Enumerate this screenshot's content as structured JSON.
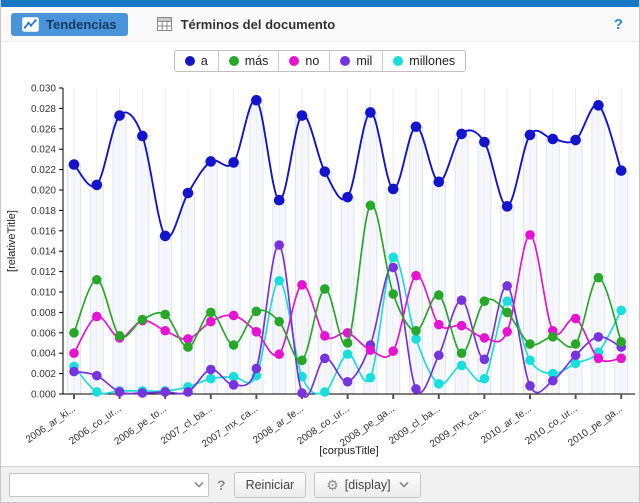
{
  "header": {
    "tabs": [
      {
        "label": "Tendencias",
        "active": true
      },
      {
        "label": "Términos del documento",
        "active": false
      }
    ],
    "help_label": "?"
  },
  "legend": {
    "items": [
      {
        "label": "a",
        "color": "#1414cc"
      },
      {
        "label": "más",
        "color": "#28a828"
      },
      {
        "label": "no",
        "color": "#e614d2"
      },
      {
        "label": "mil",
        "color": "#7733dd"
      },
      {
        "label": "millones",
        "color": "#19dede"
      }
    ]
  },
  "chart_data": {
    "type": "line",
    "title": "",
    "xlabel": "[corpusTitle]",
    "ylabel": "[relativeTitle]",
    "ylim": [
      0,
      0.03
    ],
    "ytick_step": 0.002,
    "grid": "vertical-only",
    "legend_position": "top-center",
    "n_points": 25,
    "x_tick_indices": [
      0,
      2,
      4,
      6,
      8,
      10,
      12,
      14,
      16,
      18,
      20,
      22,
      24
    ],
    "x_tick_labels": [
      "2006_ar_ki...",
      "2006_co_ur...",
      "2006_pe_to...",
      "2007_cl_ba...",
      "2007_mx_ca...",
      "2008_ar_fe...",
      "2008_co_ur...",
      "2008_pe_ga...",
      "2009_cl_ba...",
      "2009_mx_ca...",
      "2010_ar_fe...",
      "2010_co_ur...",
      "2010_pe_ga..."
    ],
    "series": [
      {
        "name": "a",
        "color": "#1414cc",
        "values": [
          0.0225,
          0.0205,
          0.0273,
          0.0253,
          0.0155,
          0.0197,
          0.0228,
          0.0227,
          0.0288,
          0.019,
          0.0273,
          0.0218,
          0.0193,
          0.0276,
          0.0201,
          0.0262,
          0.0208,
          0.0255,
          0.0247,
          0.0184,
          0.0254,
          0.025,
          0.0249,
          0.0283,
          0.0219
        ]
      },
      {
        "name": "más",
        "color": "#28a828",
        "values": [
          0.006,
          0.0112,
          0.0057,
          0.0073,
          0.0078,
          0.0046,
          0.008,
          0.0048,
          0.0081,
          0.0071,
          0.0033,
          0.0103,
          0.005,
          0.0185,
          0.0098,
          0.0062,
          0.0097,
          0.004,
          0.0091,
          0.008,
          0.0049,
          0.0056,
          0.0049,
          0.0114,
          0.0051
        ]
      },
      {
        "name": "no",
        "color": "#e614d2",
        "values": [
          0.004,
          0.0076,
          0.0055,
          0.0072,
          0.0062,
          0.0054,
          0.0071,
          0.0077,
          0.0061,
          0.0039,
          0.0107,
          0.0057,
          0.006,
          0.0043,
          0.0042,
          0.0116,
          0.0068,
          0.0067,
          0.0055,
          0.0061,
          0.0156,
          0.0062,
          0.0074,
          0.0035,
          0.0035
        ]
      },
      {
        "name": "mil",
        "color": "#7733dd",
        "values": [
          0.0022,
          0.0018,
          0.0002,
          0.0001,
          0.0002,
          0.0002,
          0.0024,
          0.0009,
          0.0025,
          0.0146,
          0.0001,
          0.0035,
          0.0012,
          0.0048,
          0.0124,
          0.0005,
          0.0038,
          0.0092,
          0.0034,
          0.0106,
          0.0008,
          0.0013,
          0.0038,
          0.0056,
          0.0046
        ]
      },
      {
        "name": "millones",
        "color": "#19dede",
        "values": [
          0.0027,
          0.0002,
          0.0003,
          0.0003,
          0.0003,
          0.0007,
          0.0015,
          0.0017,
          0.0018,
          0.0111,
          0.0017,
          0.0002,
          0.0039,
          0.0016,
          0.0134,
          0.0054,
          0.001,
          0.0028,
          0.0015,
          0.0091,
          0.0033,
          0.002,
          0.003,
          0.0041,
          0.0082
        ]
      }
    ]
  },
  "toolbar": {
    "search_value": "",
    "search_placeholder": "",
    "help_label": "?",
    "reset_label": "Reiniciar",
    "display_label": "[display]"
  }
}
